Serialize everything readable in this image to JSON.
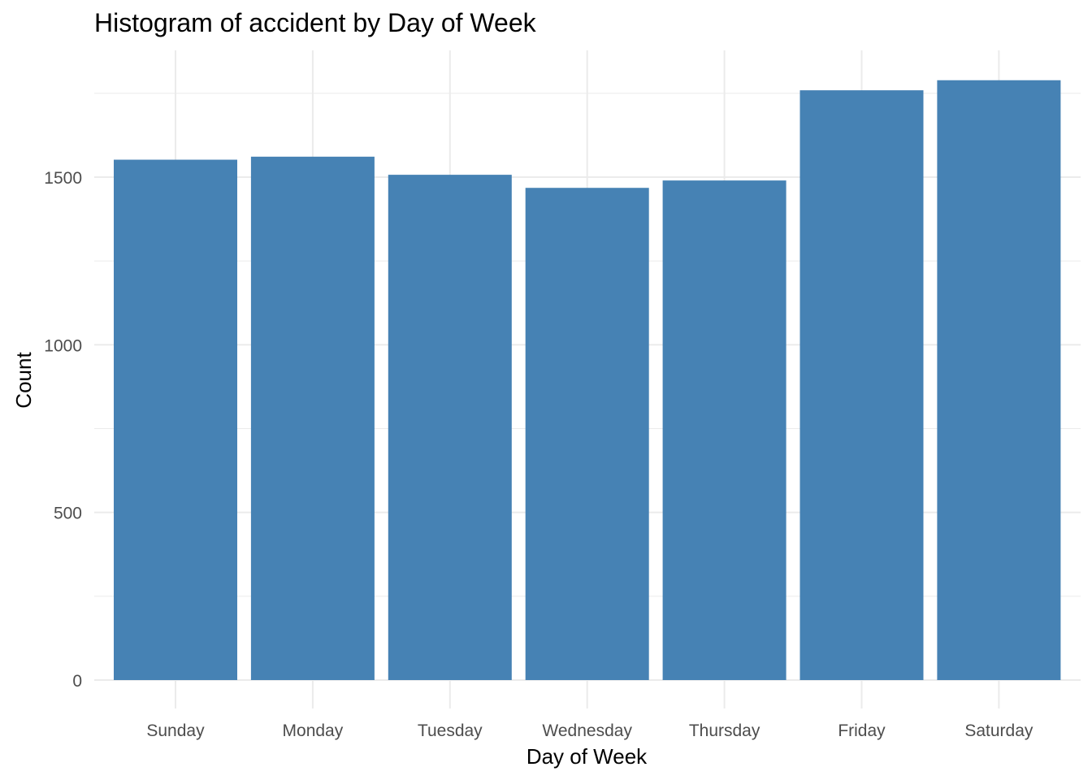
{
  "chart_data": {
    "type": "bar",
    "title": "Histogram of accident by Day of Week",
    "xlabel": "Day of Week",
    "ylabel": "Count",
    "categories": [
      "Sunday",
      "Monday",
      "Tuesday",
      "Wednesday",
      "Thursday",
      "Friday",
      "Saturday"
    ],
    "values": [
      1552,
      1561,
      1507,
      1468,
      1490,
      1759,
      1789
    ],
    "ylim": [
      0,
      1880
    ],
    "yticks": [
      0,
      500,
      1000,
      1500
    ],
    "grid": true,
    "bar_color": "#4682B4",
    "grid_color": "#EBEBEB",
    "tick_label_color": "#4D4D4D"
  }
}
